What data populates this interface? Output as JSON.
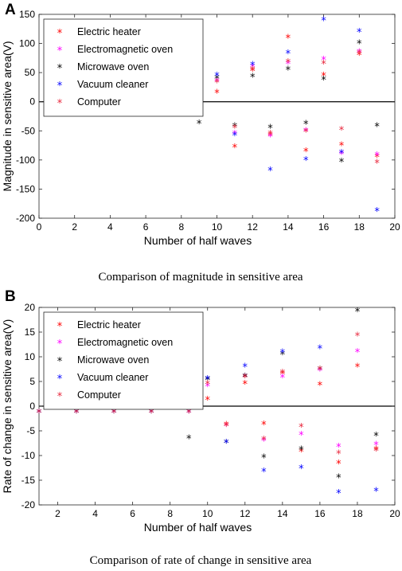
{
  "chart_data": [
    {
      "type": "scatter",
      "panel_label": "A",
      "caption": "Comparison of magnitude in sensitive area",
      "xlabel": "Number of half waves",
      "ylabel": "Magnitude in sensitive area(V)",
      "xlim": [
        0,
        20
      ],
      "ylim": [
        -200,
        150
      ],
      "xticks": [
        0,
        2,
        4,
        6,
        8,
        10,
        12,
        14,
        16,
        18,
        20
      ],
      "yticks": [
        -200,
        -150,
        -100,
        -50,
        0,
        50,
        100,
        150
      ],
      "legend_position": "top-left",
      "grid": false,
      "zero_line": true,
      "marker": "*",
      "series": [
        {
          "name": "Electric heater",
          "color": "#ff0000",
          "x": [
            1,
            2,
            3,
            4,
            5,
            6,
            7,
            8,
            9,
            10,
            11,
            12,
            13,
            14,
            15,
            16,
            17,
            18,
            19
          ],
          "y": [
            -18,
            15,
            -18,
            15,
            -18,
            15,
            -18,
            18,
            -15,
            15,
            -78,
            53,
            -58,
            110,
            -85,
            45,
            -75,
            80,
            -95
          ]
        },
        {
          "name": "Electromagnetic oven",
          "color": "#ff00ff",
          "x": [
            1,
            2,
            3,
            4,
            5,
            6,
            7,
            8,
            9,
            10,
            11,
            12,
            13,
            14,
            15,
            16,
            17,
            18,
            19
          ],
          "y": [
            -14,
            13,
            -14,
            13,
            -14,
            13,
            -14,
            15,
            -13,
            35,
            -55,
            60,
            -60,
            65,
            -50,
            72,
            -90,
            85,
            -92
          ]
        },
        {
          "name": "Microwave oven",
          "color": "#000000",
          "x": [
            1,
            2,
            3,
            4,
            5,
            6,
            7,
            8,
            9,
            10,
            11,
            12,
            13,
            14,
            15,
            16,
            17,
            18,
            19
          ],
          "y": [
            -12,
            13,
            -12,
            13,
            -12,
            13,
            -12,
            13,
            -37,
            40,
            -42,
            43,
            -45,
            55,
            -38,
            38,
            -103,
            100,
            -42
          ]
        },
        {
          "name": "Vacuum cleaner",
          "color": "#0000ff",
          "x": [
            1,
            2,
            3,
            4,
            5,
            6,
            7,
            8,
            9,
            10,
            11,
            12,
            13,
            14,
            15,
            16,
            17,
            18,
            19
          ],
          "y": [
            -12,
            13,
            -12,
            13,
            -12,
            13,
            -12,
            13,
            -12,
            45,
            -58,
            63,
            -118,
            83,
            -100,
            140,
            -88,
            120,
            -188
          ]
        },
        {
          "name": "Computer",
          "color": "#e8263b",
          "x": [
            1,
            2,
            3,
            4,
            5,
            6,
            7,
            8,
            9,
            10,
            11,
            12,
            13,
            14,
            15,
            16,
            17,
            18,
            19
          ],
          "y": [
            -16,
            15,
            -16,
            15,
            -16,
            15,
            -16,
            17,
            -17,
            33,
            -45,
            55,
            -55,
            68,
            -52,
            65,
            -48,
            83,
            -105
          ]
        }
      ]
    },
    {
      "type": "scatter",
      "panel_label": "B",
      "caption": "Comparison of rate of change in sensitive area",
      "xlabel": "Number of half waves",
      "ylabel": "Rate of change in sensitive area(V)",
      "xlim": [
        1,
        20
      ],
      "ylim": [
        -20,
        20
      ],
      "xticks": [
        2,
        4,
        6,
        8,
        10,
        12,
        14,
        16,
        18,
        20
      ],
      "yticks": [
        -20,
        -15,
        -10,
        -5,
        0,
        5,
        10,
        15,
        20
      ],
      "legend_position": "top-left",
      "grid": false,
      "zero_line": true,
      "marker": "*",
      "series": [
        {
          "name": "Electric heater",
          "color": "#ff0000",
          "x": [
            1,
            2,
            3,
            4,
            5,
            6,
            7,
            8,
            9,
            10,
            11,
            12,
            13,
            14,
            15,
            16,
            17,
            18,
            19
          ],
          "y": [
            -1.3,
            1.3,
            -1.3,
            1.3,
            -1.3,
            1.3,
            -1.3,
            1.3,
            -1.3,
            1.3,
            -3.8,
            4.5,
            -3.7,
            6.5,
            -9.2,
            4.3,
            -11.6,
            8.0,
            -8.8
          ]
        },
        {
          "name": "Electromagnetic oven",
          "color": "#ff00ff",
          "x": [
            1,
            2,
            3,
            4,
            5,
            6,
            7,
            8,
            9,
            10,
            11,
            12,
            13,
            14,
            15,
            16,
            17,
            18,
            19
          ],
          "y": [
            -1.3,
            1.3,
            -1.3,
            1.3,
            -1.3,
            1.3,
            -1.3,
            1.3,
            -1.3,
            4.0,
            -4.0,
            6.0,
            -7.0,
            5.8,
            -5.8,
            7.2,
            -8.2,
            11.0,
            -7.8
          ]
        },
        {
          "name": "Microwave oven",
          "color": "#000000",
          "x": [
            1,
            2,
            3,
            4,
            5,
            6,
            7,
            8,
            9,
            10,
            11,
            12,
            13,
            14,
            15,
            16,
            17,
            18,
            19
          ],
          "y": [
            -1.3,
            1.3,
            -1.3,
            1.3,
            -1.3,
            1.3,
            -1.3,
            1.3,
            -6.5,
            5.3,
            -7.4,
            6.0,
            -10.4,
            10.5,
            -8.8,
            7.4,
            -14.4,
            19.2,
            -6.0
          ]
        },
        {
          "name": "Vacuum cleaner",
          "color": "#0000ff",
          "x": [
            1,
            2,
            3,
            4,
            5,
            6,
            7,
            8,
            9,
            10,
            11,
            12,
            13,
            14,
            15,
            16,
            17,
            18,
            19
          ],
          "y": [
            -1.3,
            1.3,
            -1.3,
            1.3,
            -1.3,
            1.3,
            -1.3,
            1.3,
            -1.3,
            5.5,
            -7.4,
            8.0,
            -13.2,
            10.9,
            -12.6,
            11.7,
            -17.6,
            null,
            -17.2
          ]
        },
        {
          "name": "Computer",
          "color": "#e8263b",
          "x": [
            1,
            2,
            3,
            4,
            5,
            6,
            7,
            8,
            9,
            10,
            11,
            12,
            13,
            14,
            15,
            16,
            17,
            18,
            19
          ],
          "y": [
            -1.3,
            1.3,
            -1.3,
            1.3,
            -1.3,
            1.3,
            -1.3,
            1.3,
            -1.3,
            4.5,
            -4.0,
            5.8,
            -6.8,
            6.8,
            -4.2,
            7.4,
            -9.6,
            14.3,
            -9.0
          ]
        }
      ]
    }
  ]
}
